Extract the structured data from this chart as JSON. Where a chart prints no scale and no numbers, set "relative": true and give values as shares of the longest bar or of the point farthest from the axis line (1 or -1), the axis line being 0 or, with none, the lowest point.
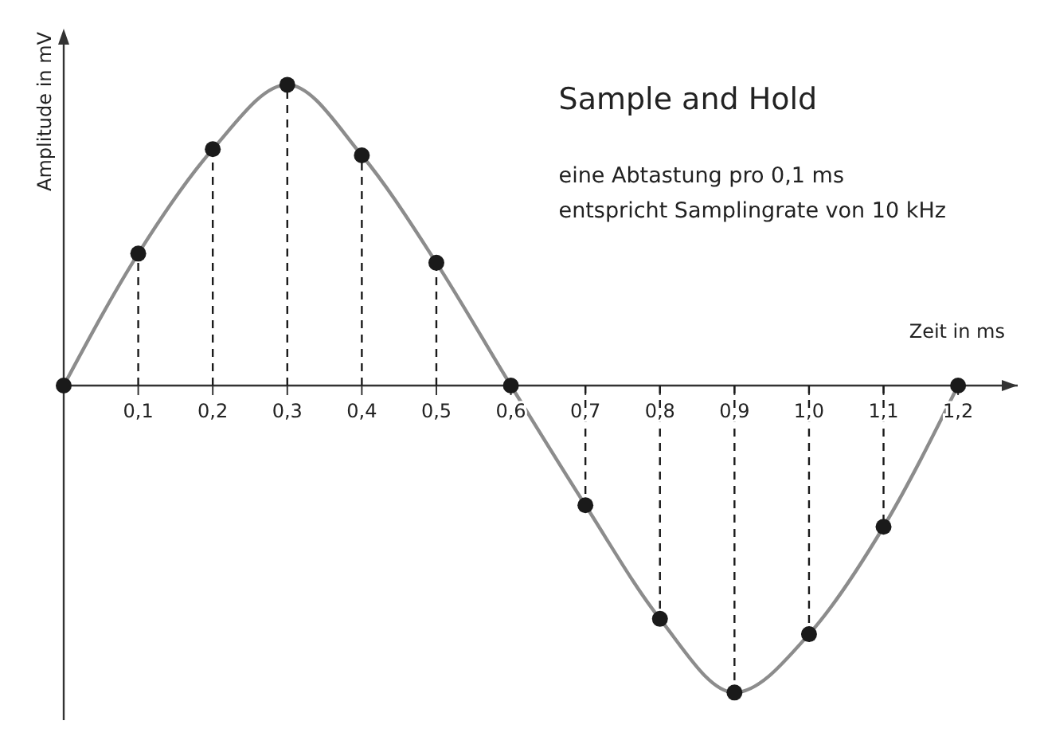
{
  "chart_data": {
    "type": "line",
    "title": "Sample and Hold",
    "annotations": [
      "eine Abtastung pro 0,1 ms",
      "entspricht Samplingrate von 10 kHz"
    ],
    "xlabel": "Zeit in ms",
    "ylabel": "Amplitude in mV",
    "relative": true,
    "xlim": [
      0,
      1.28
    ],
    "xticks": [
      {
        "value": 0.1,
        "label": "0,1"
      },
      {
        "value": 0.2,
        "label": "0,2"
      },
      {
        "value": 0.3,
        "label": "0,3"
      },
      {
        "value": 0.4,
        "label": "0,4"
      },
      {
        "value": 0.5,
        "label": "0,5"
      },
      {
        "value": 0.6,
        "label": "0,6"
      },
      {
        "value": 0.7,
        "label": "0,7"
      },
      {
        "value": 0.8,
        "label": "0,8"
      },
      {
        "value": 0.9,
        "label": "0,9"
      },
      {
        "value": 1.0,
        "label": "1,0"
      },
      {
        "value": 1.1,
        "label": "1,1"
      },
      {
        "value": 1.2,
        "label": "1,2"
      }
    ],
    "x": [
      0,
      0.1,
      0.2,
      0.3,
      0.4,
      0.5,
      0.6,
      0.7,
      0.8,
      0.9,
      1.0,
      1.1,
      1.2
    ],
    "series": [
      {
        "type": "line",
        "color": "#8c8c8c",
        "marker": "none",
        "values": [
          0,
          0.43,
          0.77,
          0.98,
          0.75,
          0.4,
          0,
          -0.39,
          -0.76,
          -1,
          -0.81,
          -0.46,
          0
        ]
      },
      {
        "type": "lollipop",
        "color": "#1a1a1a",
        "marker": "circle",
        "line_style": "dashed",
        "values": [
          0,
          0.43,
          0.77,
          0.98,
          0.75,
          0.4,
          0,
          -0.39,
          -0.76,
          -1,
          -0.81,
          -0.46,
          0
        ]
      }
    ]
  }
}
